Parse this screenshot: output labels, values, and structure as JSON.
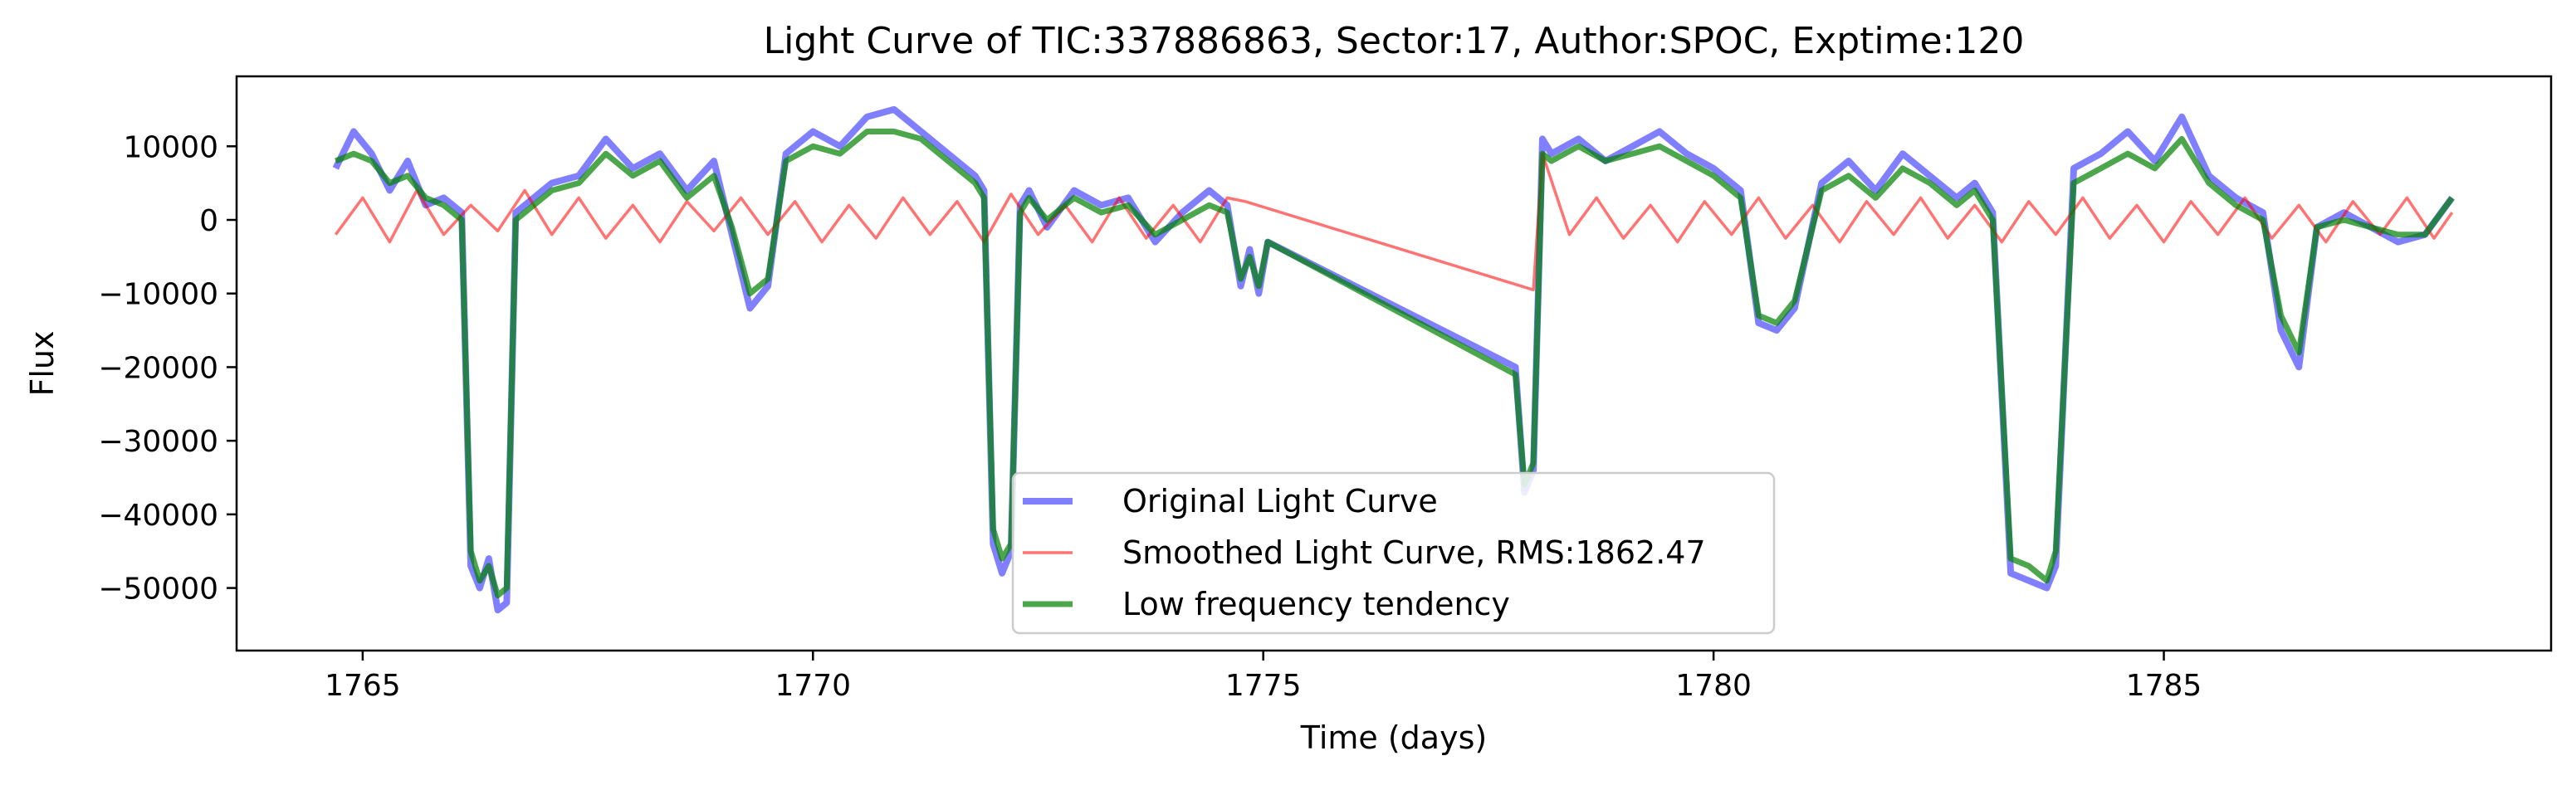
{
  "chart_data": {
    "type": "line",
    "title": "Light Curve of TIC:337886863, Sector:17, Author:SPOC, Exptime:120",
    "xlabel": "Time (days)",
    "ylabel": "Flux",
    "xlim": [
      1763.6,
      1789.3
    ],
    "ylim": [
      -58500,
      19500
    ],
    "x_ticks": [
      1765,
      1770,
      1775,
      1780,
      1785
    ],
    "x_tick_labels": [
      "1765",
      "1770",
      "1775",
      "1780",
      "1785"
    ],
    "y_ticks": [
      -50000,
      -40000,
      -30000,
      -20000,
      -10000,
      0,
      10000
    ],
    "y_tick_labels": [
      "−50000",
      "−40000",
      "−30000",
      "−20000",
      "−10000",
      "0",
      "10000"
    ],
    "grid": false,
    "legend_position": "lower-center",
    "series": [
      {
        "name": "Original Light Curve",
        "color": "#0000ff",
        "x": [
          1764.7,
          1764.9,
          1765.1,
          1765.3,
          1765.5,
          1765.7,
          1765.9,
          1766.1,
          1766.2,
          1766.3,
          1766.4,
          1766.5,
          1766.6,
          1766.7,
          1766.9,
          1767.1,
          1767.4,
          1767.7,
          1768.0,
          1768.3,
          1768.6,
          1768.9,
          1769.1,
          1769.3,
          1769.5,
          1769.7,
          1770.0,
          1770.3,
          1770.6,
          1770.9,
          1771.2,
          1771.5,
          1771.8,
          1771.9,
          1772.0,
          1772.1,
          1772.2,
          1772.3,
          1772.4,
          1772.6,
          1772.9,
          1773.2,
          1773.5,
          1773.8,
          1774.1,
          1774.4,
          1774.6,
          1774.75,
          1774.85,
          1774.95,
          1775.05,
          1777.8,
          1777.9,
          1778.0,
          1778.1,
          1778.2,
          1778.5,
          1778.8,
          1779.1,
          1779.4,
          1779.7,
          1780.0,
          1780.3,
          1780.5,
          1780.7,
          1780.9,
          1781.2,
          1781.5,
          1781.8,
          1782.1,
          1782.4,
          1782.7,
          1782.9,
          1783.1,
          1783.3,
          1783.5,
          1783.7,
          1783.8,
          1784.0,
          1784.3,
          1784.6,
          1784.9,
          1785.2,
          1785.5,
          1785.8,
          1786.1,
          1786.3,
          1786.5,
          1786.7,
          1787.0,
          1787.3,
          1787.6,
          1787.9,
          1788.2
        ],
        "y": [
          7000,
          12000,
          9000,
          4000,
          8000,
          2000,
          3000,
          1000,
          -47000,
          -50000,
          -46000,
          -53000,
          -52000,
          1000,
          3000,
          5000,
          6000,
          11000,
          7000,
          9000,
          4000,
          8000,
          -2000,
          -12000,
          -9000,
          9000,
          12000,
          10000,
          14000,
          15000,
          12000,
          9000,
          6000,
          4000,
          -44000,
          -48000,
          -45000,
          2000,
          4000,
          -1000,
          4000,
          2000,
          3000,
          -3000,
          1000,
          4000,
          2000,
          -9000,
          -4000,
          -10000,
          -3000,
          -20000,
          -37000,
          -34000,
          11000,
          9000,
          11000,
          8000,
          10000,
          12000,
          9000,
          7000,
          4000,
          -14000,
          -15000,
          -12000,
          5000,
          8000,
          4000,
          9000,
          6000,
          3000,
          5000,
          1000,
          -48000,
          -49000,
          -50000,
          -47000,
          7000,
          9000,
          12000,
          8000,
          14000,
          6000,
          3000,
          1000,
          -15000,
          -20000,
          -1000,
          1000,
          -1000,
          -3000,
          -2000,
          3000
        ]
      },
      {
        "name": "Smoothed Light Curve, RMS:1862.47",
        "color": "#ff0000",
        "x": [
          1764.7,
          1765.0,
          1765.3,
          1765.6,
          1765.9,
          1766.2,
          1766.5,
          1766.8,
          1767.1,
          1767.4,
          1767.7,
          1768.0,
          1768.3,
          1768.6,
          1768.9,
          1769.2,
          1769.5,
          1769.8,
          1770.1,
          1770.4,
          1770.7,
          1771.0,
          1771.3,
          1771.6,
          1771.9,
          1772.2,
          1772.5,
          1772.8,
          1773.1,
          1773.4,
          1773.7,
          1774.0,
          1774.3,
          1774.6,
          1774.8,
          1778.0,
          1778.1,
          1778.4,
          1778.7,
          1779.0,
          1779.3,
          1779.6,
          1779.9,
          1780.2,
          1780.5,
          1780.8,
          1781.1,
          1781.4,
          1781.7,
          1782.0,
          1782.3,
          1782.6,
          1782.9,
          1783.2,
          1783.5,
          1783.8,
          1784.1,
          1784.4,
          1784.7,
          1785.0,
          1785.3,
          1785.6,
          1785.9,
          1786.2,
          1786.5,
          1786.8,
          1787.1,
          1787.4,
          1787.7,
          1788.0,
          1788.2
        ],
        "y": [
          -2000,
          3000,
          -3000,
          4000,
          -2000,
          2000,
          -1500,
          4000,
          -2000,
          3000,
          -2500,
          2000,
          -3000,
          2500,
          -1500,
          3000,
          -2000,
          2500,
          -3000,
          2000,
          -2500,
          3000,
          -2000,
          2500,
          -3000,
          3500,
          -2000,
          2000,
          -3000,
          3000,
          -2500,
          2000,
          -3000,
          3000,
          2500,
          -9500,
          9000,
          -2000,
          3000,
          -2500,
          2000,
          -3000,
          2500,
          -2000,
          3000,
          -2500,
          2000,
          -3000,
          2500,
          -2000,
          3000,
          -2500,
          2000,
          -3000,
          2500,
          -2000,
          3000,
          -2500,
          2000,
          -3000,
          2500,
          -2000,
          3000,
          -2500,
          2000,
          -3000,
          2500,
          -2000,
          3000,
          -2500,
          1000
        ]
      },
      {
        "name": "Low frequency tendency",
        "color": "#008000",
        "x": [
          1764.7,
          1764.9,
          1765.1,
          1765.3,
          1765.5,
          1765.7,
          1765.9,
          1766.1,
          1766.2,
          1766.3,
          1766.4,
          1766.5,
          1766.6,
          1766.7,
          1766.9,
          1767.1,
          1767.4,
          1767.7,
          1768.0,
          1768.3,
          1768.6,
          1768.9,
          1769.1,
          1769.3,
          1769.5,
          1769.7,
          1770.0,
          1770.3,
          1770.6,
          1770.9,
          1771.2,
          1771.5,
          1771.8,
          1771.9,
          1772.0,
          1772.1,
          1772.2,
          1772.3,
          1772.4,
          1772.6,
          1772.9,
          1773.2,
          1773.5,
          1773.8,
          1774.1,
          1774.4,
          1774.6,
          1774.75,
          1774.85,
          1774.95,
          1775.05,
          1777.8,
          1777.9,
          1778.0,
          1778.1,
          1778.2,
          1778.5,
          1778.8,
          1779.1,
          1779.4,
          1779.7,
          1780.0,
          1780.3,
          1780.5,
          1780.7,
          1780.9,
          1781.2,
          1781.5,
          1781.8,
          1782.1,
          1782.4,
          1782.7,
          1782.9,
          1783.1,
          1783.3,
          1783.5,
          1783.7,
          1783.8,
          1784.0,
          1784.3,
          1784.6,
          1784.9,
          1785.2,
          1785.5,
          1785.8,
          1786.1,
          1786.3,
          1786.5,
          1786.7,
          1787.0,
          1787.3,
          1787.6,
          1787.9,
          1788.2
        ],
        "y": [
          8000,
          9000,
          8000,
          5000,
          6000,
          3000,
          2000,
          0,
          -45000,
          -49000,
          -47000,
          -51000,
          -50000,
          0,
          2000,
          4000,
          5000,
          9000,
          6000,
          8000,
          3000,
          6000,
          -1000,
          -10000,
          -8000,
          8000,
          10000,
          9000,
          12000,
          12000,
          11000,
          8000,
          5000,
          3000,
          -42000,
          -46000,
          -44000,
          1000,
          3000,
          0,
          3000,
          1000,
          2000,
          -2000,
          0,
          2000,
          1000,
          -8000,
          -5000,
          -9000,
          -3000,
          -21000,
          -36000,
          -33000,
          9000,
          8000,
          10000,
          8000,
          9000,
          10000,
          8000,
          6000,
          3000,
          -13000,
          -14000,
          -11000,
          4000,
          6000,
          3000,
          7000,
          5000,
          2000,
          4000,
          0,
          -46000,
          -47000,
          -49000,
          -45000,
          5000,
          7000,
          9000,
          7000,
          11000,
          5000,
          2000,
          0,
          -13000,
          -18000,
          -1000,
          0,
          -1000,
          -2000,
          -2000,
          3000
        ]
      }
    ]
  }
}
